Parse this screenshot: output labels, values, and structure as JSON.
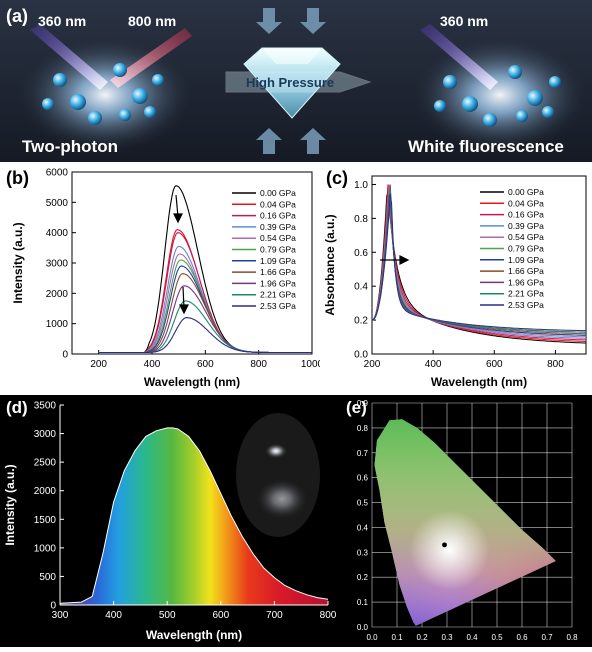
{
  "panel_a": {
    "label": "(a)",
    "left_wavelength_1": "360 nm",
    "left_wavelength_2": "800 nm",
    "center_label": "High Pressure",
    "right_wavelength": "360 nm",
    "left_caption": "Two-photon",
    "right_caption": "White fluorescence"
  },
  "colors": {
    "legend_series": [
      "#000000",
      "#e8141c",
      "#c81a52",
      "#5a8bd6",
      "#b06ab0",
      "#4aa64a",
      "#1f3fa8",
      "#8a4b2b",
      "#77357f",
      "#1a8a6a",
      "#2b2b8a"
    ]
  },
  "chart_data": [
    {
      "id": "b",
      "panel_label": "(b)",
      "type": "line",
      "xlabel": "Wavelength (nm)",
      "ylabel": "Intensity (a.u.)",
      "xlim": [
        100,
        1000
      ],
      "ylim": [
        0,
        6000
      ],
      "xticks": [
        200,
        400,
        600,
        800,
        1000
      ],
      "yticks": [
        0,
        1000,
        2000,
        3000,
        4000,
        5000,
        6000
      ],
      "grid": false,
      "legend": "right",
      "series": [
        {
          "name": "0.00 GPa",
          "peak_x": 490,
          "peak_y": 5500
        },
        {
          "name": "0.04 GPa",
          "peak_x": 495,
          "peak_y": 4050
        },
        {
          "name": "0.16 GPa",
          "peak_x": 497,
          "peak_y": 3950
        },
        {
          "name": "0.39 GPa",
          "peak_x": 500,
          "peak_y": 3500
        },
        {
          "name": "0.54 GPa",
          "peak_x": 503,
          "peak_y": 3250
        },
        {
          "name": "0.79 GPa",
          "peak_x": 507,
          "peak_y": 3050
        },
        {
          "name": "1.09 GPa",
          "peak_x": 510,
          "peak_y": 2850
        },
        {
          "name": "1.66 GPa",
          "peak_x": 515,
          "peak_y": 2600
        },
        {
          "name": "1.96 GPa",
          "peak_x": 520,
          "peak_y": 2200
        },
        {
          "name": "2.21 GPa",
          "peak_x": 525,
          "peak_y": 1700
        },
        {
          "name": "2.53 GPa",
          "peak_x": 530,
          "peak_y": 1150
        }
      ]
    },
    {
      "id": "c",
      "panel_label": "(c)",
      "type": "line",
      "xlabel": "Wavelength (nm)",
      "ylabel": "Absorbance (a.u.)",
      "xlim": [
        200,
        900
      ],
      "ylim": [
        0,
        1.05
      ],
      "xticks": [
        200,
        400,
        600,
        800
      ],
      "yticks": [
        0.0,
        0.2,
        0.4,
        0.6,
        0.8,
        1.0
      ],
      "grid": false,
      "legend": "right",
      "series": [
        {
          "name": "0.00 GPa",
          "peak_x": 250,
          "tail_y": 0.05
        },
        {
          "name": "0.04 GPa",
          "peak_x": 252,
          "tail_y": 0.06
        },
        {
          "name": "0.16 GPa",
          "peak_x": 253,
          "tail_y": 0.07
        },
        {
          "name": "0.39 GPa",
          "peak_x": 255,
          "tail_y": 0.08
        },
        {
          "name": "0.54 GPa",
          "peak_x": 256,
          "tail_y": 0.09
        },
        {
          "name": "0.79 GPa",
          "peak_x": 257,
          "tail_y": 0.1
        },
        {
          "name": "1.09 GPa",
          "peak_x": 258,
          "tail_y": 0.1
        },
        {
          "name": "1.66 GPa",
          "peak_x": 259,
          "tail_y": 0.11
        },
        {
          "name": "1.96 GPa",
          "peak_x": 260,
          "tail_y": 0.12
        },
        {
          "name": "2.21 GPa",
          "peak_x": 261,
          "tail_y": 0.12
        },
        {
          "name": "2.53 GPa",
          "peak_x": 262,
          "tail_y": 0.13
        }
      ]
    },
    {
      "id": "d",
      "panel_label": "(d)",
      "type": "area",
      "xlabel": "Wavelength (nm)",
      "ylabel": "Intensity (a.u.)",
      "xlim": [
        300,
        800
      ],
      "ylim": [
        0,
        3500
      ],
      "xticks": [
        300,
        400,
        500,
        600,
        700,
        800
      ],
      "yticks": [
        0,
        500,
        1000,
        1500,
        2000,
        2500,
        3000,
        3500
      ],
      "grid": false,
      "x": [
        300,
        340,
        360,
        380,
        400,
        420,
        440,
        460,
        480,
        500,
        510,
        520,
        540,
        560,
        580,
        600,
        620,
        640,
        660,
        680,
        700,
        720,
        740,
        760,
        780,
        800
      ],
      "values": [
        30,
        50,
        150,
        900,
        1800,
        2350,
        2700,
        2950,
        3050,
        3100,
        3100,
        3080,
        2950,
        2700,
        2350,
        1950,
        1550,
        1200,
        900,
        650,
        480,
        340,
        250,
        180,
        130,
        100
      ]
    },
    {
      "id": "e",
      "panel_label": "(e)",
      "type": "scatter",
      "xlim": [
        0.0,
        0.8
      ],
      "ylim": [
        0.0,
        0.9
      ],
      "xticks": [
        0.0,
        0.1,
        0.2,
        0.3,
        0.4,
        0.5,
        0.6,
        0.7,
        0.8
      ],
      "yticks": [
        0.0,
        0.1,
        0.2,
        0.3,
        0.4,
        0.5,
        0.6,
        0.7,
        0.8,
        0.9
      ],
      "grid": true,
      "point": {
        "x": 0.29,
        "y": 0.33
      }
    }
  ]
}
